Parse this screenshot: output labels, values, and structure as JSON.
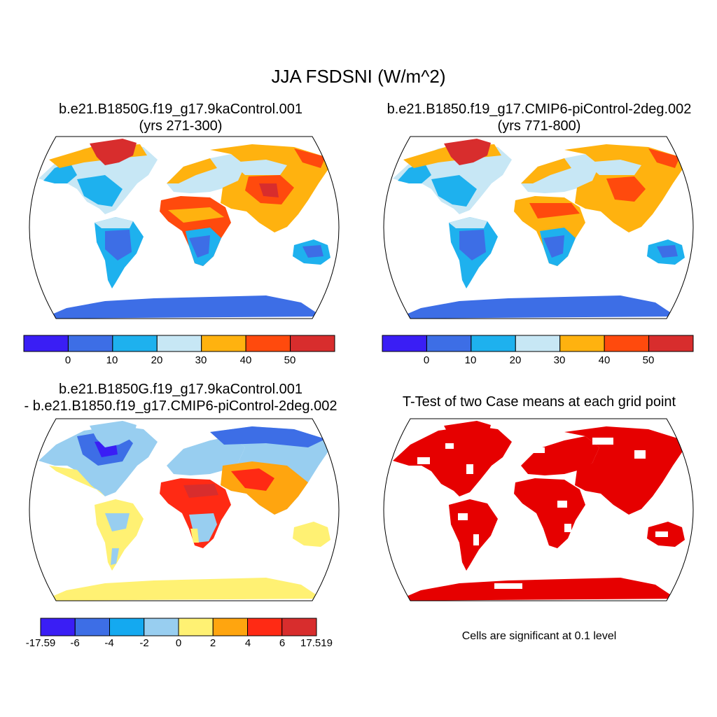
{
  "title": "JJA FSDSNI (W/m^2)",
  "panels": [
    {
      "id": "case1",
      "title_lines": [
        "b.e21.B1850G.f19_g17.9kaControl.001",
        "(yrs 271-300)"
      ],
      "colorbar": {
        "colors": [
          "#3a1ef5",
          "#3d6ee6",
          "#1eb1ee",
          "#c7e7f5",
          "#ffb20f",
          "#ff4a0d",
          "#d82d2d"
        ],
        "tick_labels": [
          "0",
          "10",
          "20",
          "30",
          "40",
          "50"
        ]
      }
    },
    {
      "id": "case2",
      "title_lines": [
        "b.e21.B1850.f19_g17.CMIP6-piControl-2deg.002",
        "(yrs 771-800)"
      ],
      "colorbar": {
        "colors": [
          "#3a1ef5",
          "#3d6ee6",
          "#1eb1ee",
          "#c7e7f5",
          "#ffb20f",
          "#ff4a0d",
          "#d82d2d"
        ],
        "tick_labels": [
          "0",
          "10",
          "20",
          "30",
          "40",
          "50"
        ]
      }
    },
    {
      "id": "diff",
      "title_lines": [
        "b.e21.B1850G.f19_g17.9kaControl.001",
        "- b.e21.B1850.f19_g17.CMIP6-piControl-2deg.002"
      ],
      "colorbar": {
        "colors": [
          "#3a1ef5",
          "#3d6ee6",
          "#14a9f0",
          "#98cef0",
          "#fff173",
          "#ffa50f",
          "#ff2a14",
          "#d82d2d"
        ],
        "tick_labels": [
          "-17.59",
          "-6",
          "-4",
          "-2",
          "0",
          "2",
          "4",
          "6",
          "17.519"
        ]
      }
    },
    {
      "id": "ttest",
      "title_lines": [
        "T-Test of two Case means at each grid point"
      ],
      "note": "Cells are significant at 0.1 level",
      "fill_color": "#e60000"
    }
  ]
}
